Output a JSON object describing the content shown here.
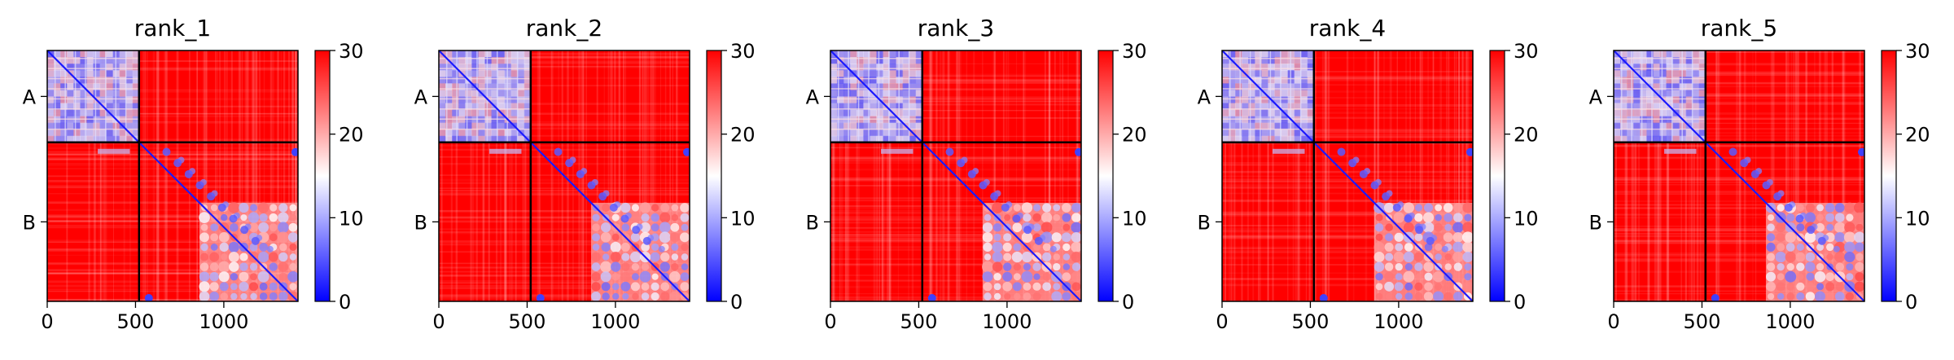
{
  "chart_data": [
    {
      "type": "heatmap",
      "title": "rank_1",
      "x_ticks": [
        0,
        500,
        1000
      ],
      "xlim": [
        0,
        1420
      ],
      "chain_boundary": 520,
      "chains": [
        "A",
        "B"
      ],
      "colorbar": {
        "min": 0,
        "max": 30,
        "ticks": [
          0,
          10,
          20,
          30
        ],
        "colormap": "bwr"
      }
    },
    {
      "type": "heatmap",
      "title": "rank_2",
      "x_ticks": [
        0,
        500,
        1000
      ],
      "xlim": [
        0,
        1420
      ],
      "chain_boundary": 520,
      "chains": [
        "A",
        "B"
      ],
      "colorbar": {
        "min": 0,
        "max": 30,
        "ticks": [
          0,
          10,
          20,
          30
        ],
        "colormap": "bwr"
      }
    },
    {
      "type": "heatmap",
      "title": "rank_3",
      "x_ticks": [
        0,
        500,
        1000
      ],
      "xlim": [
        0,
        1420
      ],
      "chain_boundary": 520,
      "chains": [
        "A",
        "B"
      ],
      "colorbar": {
        "min": 0,
        "max": 30,
        "ticks": [
          0,
          10,
          20,
          30
        ],
        "colormap": "bwr"
      }
    },
    {
      "type": "heatmap",
      "title": "rank_4",
      "x_ticks": [
        0,
        500,
        1000
      ],
      "xlim": [
        0,
        1420
      ],
      "chain_boundary": 520,
      "chains": [
        "A",
        "B"
      ],
      "colorbar": {
        "min": 0,
        "max": 30,
        "ticks": [
          0,
          10,
          20,
          30
        ],
        "colormap": "bwr"
      }
    },
    {
      "type": "heatmap",
      "title": "rank_5",
      "x_ticks": [
        0,
        500,
        1000
      ],
      "xlim": [
        0,
        1420
      ],
      "chain_boundary": 520,
      "chains": [
        "A",
        "B"
      ],
      "colorbar": {
        "min": 0,
        "max": 30,
        "ticks": [
          0,
          10,
          20,
          30
        ],
        "colormap": "bwr"
      }
    }
  ],
  "colors": {
    "low": "#0000ff",
    "mid": "#ffffff",
    "high": "#ff0000",
    "boundary": "#000000"
  }
}
